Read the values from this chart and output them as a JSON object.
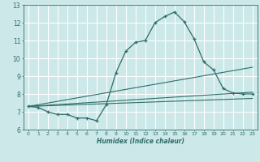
{
  "xlabel": "Humidex (Indice chaleur)",
  "ylabel": "",
  "xlim": [
    -0.5,
    23.5
  ],
  "ylim": [
    6,
    13
  ],
  "yticks": [
    6,
    7,
    8,
    9,
    10,
    11,
    12,
    13
  ],
  "xticks": [
    0,
    1,
    2,
    3,
    4,
    5,
    6,
    7,
    8,
    9,
    10,
    11,
    12,
    13,
    14,
    15,
    16,
    17,
    18,
    19,
    20,
    21,
    22,
    23
  ],
  "background_color": "#cce8e8",
  "grid_color": "#ffffff",
  "line_color": "#2e6e6a",
  "curve_x": [
    0,
    1,
    2,
    3,
    4,
    5,
    6,
    7,
    8,
    9,
    10,
    11,
    12,
    13,
    14,
    15,
    16,
    17,
    18,
    19,
    20,
    21,
    22,
    23
  ],
  "curve_y": [
    7.3,
    7.25,
    7.0,
    6.85,
    6.85,
    6.65,
    6.65,
    6.5,
    7.4,
    9.2,
    10.4,
    10.9,
    11.0,
    12.0,
    12.35,
    12.6,
    12.05,
    11.1,
    9.8,
    9.35,
    8.3,
    8.05,
    8.0,
    8.0
  ],
  "line1_x": [
    0,
    23
  ],
  "line1_y": [
    7.3,
    9.5
  ],
  "line2_x": [
    0,
    23
  ],
  "line2_y": [
    7.3,
    8.1
  ],
  "line3_x": [
    0,
    23
  ],
  "line3_y": [
    7.3,
    7.75
  ]
}
